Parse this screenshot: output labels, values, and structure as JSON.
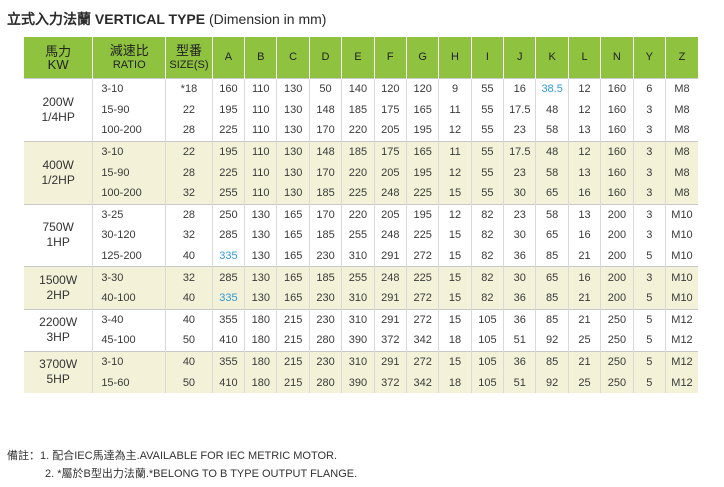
{
  "title": {
    "main": "立式入力法蘭 VERTICAL TYPE",
    "dim": "(Dimension in mm)"
  },
  "headers": {
    "power": "馬力",
    "power_unit": "KW",
    "ratio": "減速比",
    "ratio_en": "RATIO",
    "size": "型番",
    "size_en": "SIZE(S)",
    "cols": [
      "A",
      "B",
      "C",
      "D",
      "E",
      "F",
      "G",
      "H",
      "I",
      "J",
      "K",
      "L",
      "N",
      "Y",
      "Z"
    ]
  },
  "groups": [
    {
      "power": "200W",
      "hp": "1/4HP",
      "shade": false,
      "rows": [
        {
          "ratio": "3-10",
          "size": "*18",
          "vals": [
            "160",
            "110",
            "130",
            "50",
            "140",
            "120",
            "120",
            "9",
            "55",
            "16",
            "38.5",
            "12",
            "160",
            "6",
            "M8"
          ],
          "blue": [
            10
          ]
        },
        {
          "ratio": "15-90",
          "size": "22",
          "vals": [
            "195",
            "110",
            "130",
            "148",
            "185",
            "175",
            "165",
            "11",
            "55",
            "17.5",
            "48",
            "12",
            "160",
            "3",
            "M8"
          ],
          "blue": []
        },
        {
          "ratio": "100-200",
          "size": "28",
          "vals": [
            "225",
            "110",
            "130",
            "170",
            "220",
            "205",
            "195",
            "12",
            "55",
            "23",
            "58",
            "13",
            "160",
            "3",
            "M8"
          ],
          "blue": []
        }
      ]
    },
    {
      "power": "400W",
      "hp": "1/2HP",
      "shade": true,
      "rows": [
        {
          "ratio": "3-10",
          "size": "22",
          "vals": [
            "195",
            "110",
            "130",
            "148",
            "185",
            "175",
            "165",
            "11",
            "55",
            "17.5",
            "48",
            "12",
            "160",
            "3",
            "M8"
          ],
          "blue": []
        },
        {
          "ratio": "15-90",
          "size": "28",
          "vals": [
            "225",
            "110",
            "130",
            "170",
            "220",
            "205",
            "195",
            "12",
            "55",
            "23",
            "58",
            "13",
            "160",
            "3",
            "M8"
          ],
          "blue": []
        },
        {
          "ratio": "100-200",
          "size": "32",
          "vals": [
            "255",
            "110",
            "130",
            "185",
            "225",
            "248",
            "225",
            "15",
            "55",
            "30",
            "65",
            "16",
            "160",
            "3",
            "M8"
          ],
          "blue": []
        }
      ]
    },
    {
      "power": "750W",
      "hp": "1HP",
      "shade": false,
      "rows": [
        {
          "ratio": "3-25",
          "size": "28",
          "vals": [
            "250",
            "130",
            "165",
            "170",
            "220",
            "205",
            "195",
            "12",
            "82",
            "23",
            "58",
            "13",
            "200",
            "3",
            "M10"
          ],
          "blue": []
        },
        {
          "ratio": "30-120",
          "size": "32",
          "vals": [
            "285",
            "130",
            "165",
            "185",
            "255",
            "248",
            "225",
            "15",
            "82",
            "30",
            "65",
            "16",
            "200",
            "3",
            "M10"
          ],
          "blue": []
        },
        {
          "ratio": "125-200",
          "size": "40",
          "vals": [
            "335",
            "130",
            "165",
            "230",
            "310",
            "291",
            "272",
            "15",
            "82",
            "36",
            "85",
            "21",
            "200",
            "5",
            "M10"
          ],
          "blue": [
            0
          ]
        }
      ]
    },
    {
      "power": "1500W",
      "hp": "2HP",
      "shade": true,
      "rows": [
        {
          "ratio": "3-30",
          "size": "32",
          "vals": [
            "285",
            "130",
            "165",
            "185",
            "255",
            "248",
            "225",
            "15",
            "82",
            "30",
            "65",
            "16",
            "200",
            "3",
            "M10"
          ],
          "blue": []
        },
        {
          "ratio": "40-100",
          "size": "40",
          "vals": [
            "335",
            "130",
            "165",
            "230",
            "310",
            "291",
            "272",
            "15",
            "82",
            "36",
            "85",
            "21",
            "200",
            "5",
            "M10"
          ],
          "blue": [
            0
          ]
        }
      ]
    },
    {
      "power": "2200W",
      "hp": "3HP",
      "shade": false,
      "rows": [
        {
          "ratio": "3-40",
          "size": "40",
          "vals": [
            "355",
            "180",
            "215",
            "230",
            "310",
            "291",
            "272",
            "15",
            "105",
            "36",
            "85",
            "21",
            "250",
            "5",
            "M12"
          ],
          "blue": []
        },
        {
          "ratio": "45-100",
          "size": "50",
          "vals": [
            "410",
            "180",
            "215",
            "280",
            "390",
            "372",
            "342",
            "18",
            "105",
            "51",
            "92",
            "25",
            "250",
            "5",
            "M12"
          ],
          "blue": []
        }
      ]
    },
    {
      "power": "3700W",
      "hp": "5HP",
      "shade": true,
      "rows": [
        {
          "ratio": "3-10",
          "size": "40",
          "vals": [
            "355",
            "180",
            "215",
            "230",
            "310",
            "291",
            "272",
            "15",
            "105",
            "36",
            "85",
            "21",
            "250",
            "5",
            "M12"
          ],
          "blue": []
        },
        {
          "ratio": "15-60",
          "size": "50",
          "vals": [
            "410",
            "180",
            "215",
            "280",
            "390",
            "372",
            "342",
            "18",
            "105",
            "51",
            "92",
            "25",
            "250",
            "5",
            "M12"
          ],
          "blue": []
        }
      ]
    }
  ],
  "notes": {
    "line1": "備註：1. 配合IEC馬達為主.AVAILABLE FOR IEC METRIC MOTOR.",
    "line2": "2. *屬於B型出力法蘭.*BELONG TO B TYPE OUTPUT FLANGE."
  },
  "colors": {
    "header_green": "#8fc23f",
    "row_shade": "#f3f2d8",
    "highlight_blue": "#2f9ad6"
  }
}
